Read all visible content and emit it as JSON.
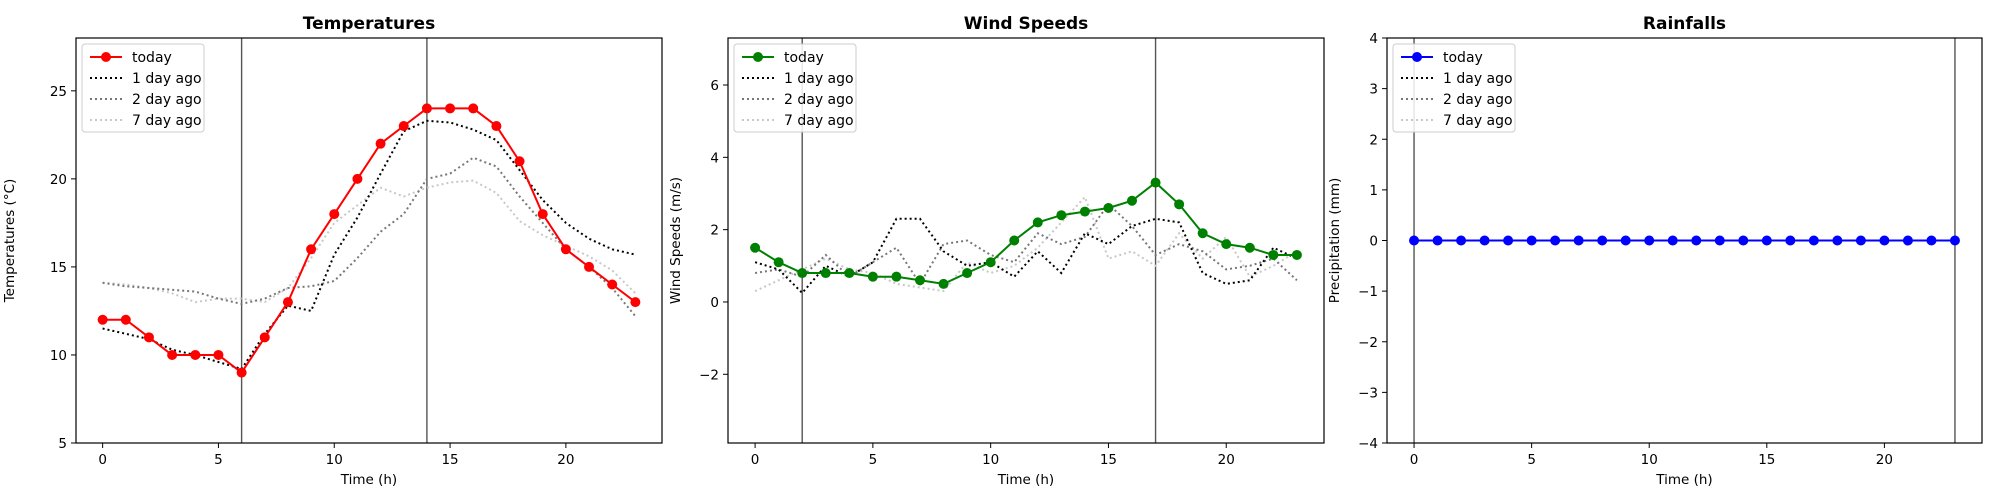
{
  "chart_data": [
    {
      "type": "line",
      "title": "Temperatures",
      "xlabel": "Time (h)",
      "ylabel": "Temperatures (°C)",
      "xlim": [
        -1.15,
        24.15
      ],
      "ylim": [
        5,
        28
      ],
      "xticks": [
        0,
        5,
        10,
        15,
        20
      ],
      "yticks": [
        5,
        10,
        15,
        20,
        25
      ],
      "vlines": [
        6,
        14
      ],
      "legend": "upper left",
      "x": [
        0,
        1,
        2,
        3,
        4,
        5,
        6,
        7,
        8,
        9,
        10,
        11,
        12,
        13,
        14,
        15,
        16,
        17,
        18,
        19,
        20,
        21,
        22,
        23
      ],
      "series": [
        {
          "name": "today",
          "color": "#ff0000",
          "style": "solid-marker",
          "values": [
            12,
            12,
            11,
            10,
            10,
            10,
            9,
            11,
            13,
            16,
            18,
            20,
            22,
            23,
            24,
            24,
            24,
            23,
            21,
            18,
            16,
            15,
            14,
            13
          ]
        },
        {
          "name": "1 day ago",
          "color": "#000000",
          "style": "dotted",
          "values": [
            11.5,
            11.2,
            10.9,
            10.3,
            10.0,
            9.6,
            9.2,
            11.2,
            12.8,
            12.5,
            15.7,
            17.8,
            20.3,
            22.7,
            23.3,
            23.2,
            22.8,
            22.2,
            20.5,
            18.8,
            17.5,
            16.6,
            16.0,
            15.7
          ]
        },
        {
          "name": "2 day ago",
          "color": "#777777",
          "style": "dotted",
          "values": [
            14.1,
            13.9,
            13.8,
            13.7,
            13.6,
            13.2,
            12.9,
            13.2,
            13.8,
            13.9,
            14.2,
            15.5,
            17.0,
            18.0,
            20.0,
            20.3,
            21.2,
            20.7,
            19.0,
            17.5,
            16.0,
            15.0,
            13.8,
            12.2
          ]
        },
        {
          "name": "7 day ago",
          "color": "#c8c8c8",
          "style": "dotted",
          "values": [
            14.1,
            14.0,
            13.8,
            13.5,
            13.0,
            13.2,
            13.2,
            13.0,
            13.8,
            15.5,
            17.5,
            18.5,
            19.5,
            19.0,
            19.5,
            19.8,
            19.9,
            19.2,
            17.6,
            16.8,
            16.2,
            15.6,
            14.8,
            13.5
          ]
        }
      ]
    },
    {
      "type": "line",
      "title": "Wind Speeds",
      "xlabel": "Time (h)",
      "ylabel": "Wind Speeds (m/s)",
      "xlim": [
        -1.15,
        24.15
      ],
      "ylim": [
        -3.9,
        7.3
      ],
      "xticks": [
        0,
        5,
        10,
        15,
        20
      ],
      "yticks": [
        -2,
        0,
        2,
        4,
        6
      ],
      "vlines": [
        2,
        17
      ],
      "legend": "upper left",
      "x": [
        0,
        1,
        2,
        3,
        4,
        5,
        6,
        7,
        8,
        9,
        10,
        11,
        12,
        13,
        14,
        15,
        16,
        17,
        18,
        19,
        20,
        21,
        22,
        23
      ],
      "series": [
        {
          "name": "today",
          "color": "#008000",
          "style": "solid-marker",
          "values": [
            1.5,
            1.1,
            0.8,
            0.8,
            0.8,
            0.7,
            0.7,
            0.6,
            0.5,
            0.8,
            1.1,
            1.7,
            2.2,
            2.4,
            2.5,
            2.6,
            2.8,
            3.3,
            2.7,
            1.9,
            1.6,
            1.5,
            1.3,
            1.3
          ]
        },
        {
          "name": "1 day ago",
          "color": "#000000",
          "style": "dotted",
          "values": [
            1.1,
            0.9,
            0.25,
            1.0,
            0.7,
            1.1,
            2.3,
            2.3,
            1.4,
            1.0,
            1.1,
            0.7,
            1.4,
            0.8,
            1.9,
            1.6,
            2.1,
            2.3,
            2.2,
            0.8,
            0.5,
            0.6,
            1.5,
            1.2
          ]
        },
        {
          "name": "2 day ago",
          "color": "#777777",
          "style": "dotted",
          "values": [
            0.8,
            0.9,
            0.7,
            1.3,
            0.7,
            1.1,
            1.5,
            0.5,
            1.6,
            1.7,
            1.3,
            1.1,
            1.9,
            1.6,
            1.8,
            2.7,
            2.1,
            1.3,
            1.6,
            1.4,
            0.9,
            1.0,
            1.2,
            0.6
          ]
        },
        {
          "name": "7 day ago",
          "color": "#c8c8c8",
          "style": "dotted",
          "values": [
            0.3,
            0.6,
            0.9,
            1.2,
            0.9,
            0.8,
            0.5,
            0.4,
            0.3,
            1.1,
            0.8,
            1.0,
            1.5,
            2.2,
            2.9,
            1.2,
            1.4,
            1.0,
            1.9,
            1.2,
            1.8,
            0.7,
            1.0,
            1.4
          ]
        }
      ]
    },
    {
      "type": "line",
      "title": "Rainfalls",
      "xlabel": "Time (h)",
      "ylabel": "Precipitation (mm)",
      "xlim": [
        -1.15,
        24.15
      ],
      "ylim": [
        -4,
        4
      ],
      "xticks": [
        0,
        5,
        10,
        15,
        20
      ],
      "yticks": [
        -4,
        -3,
        -2,
        -1,
        0,
        1,
        2,
        3,
        4
      ],
      "vlines": [
        0,
        23
      ],
      "legend": "upper left",
      "x": [
        0,
        1,
        2,
        3,
        4,
        5,
        6,
        7,
        8,
        9,
        10,
        11,
        12,
        13,
        14,
        15,
        16,
        17,
        18,
        19,
        20,
        21,
        22,
        23
      ],
      "series": [
        {
          "name": "today",
          "color": "#0000ff",
          "style": "solid-marker",
          "values": [
            0,
            0,
            0,
            0,
            0,
            0,
            0,
            0,
            0,
            0,
            0,
            0,
            0,
            0,
            0,
            0,
            0,
            0,
            0,
            0,
            0,
            0,
            0,
            0
          ]
        },
        {
          "name": "1 day ago",
          "color": "#000000",
          "style": "dotted",
          "values": [
            0,
            0,
            0,
            0,
            0,
            0,
            0,
            0,
            0,
            0,
            0,
            0,
            0,
            0,
            0,
            0,
            0,
            0,
            0,
            0,
            0,
            0,
            0,
            0
          ]
        },
        {
          "name": "2 day ago",
          "color": "#777777",
          "style": "dotted",
          "values": [
            0,
            0,
            0,
            0,
            0,
            0,
            0,
            0,
            0,
            0,
            0,
            0,
            0,
            0,
            0,
            0,
            0,
            0,
            0,
            0,
            0,
            0,
            0,
            0
          ]
        },
        {
          "name": "7 day ago",
          "color": "#c8c8c8",
          "style": "dotted",
          "values": [
            0,
            0,
            0,
            0,
            0,
            0,
            0,
            0,
            0,
            0,
            0,
            0,
            0,
            0,
            0,
            0,
            0,
            0,
            0,
            0,
            0,
            0,
            0,
            0
          ]
        }
      ]
    }
  ]
}
